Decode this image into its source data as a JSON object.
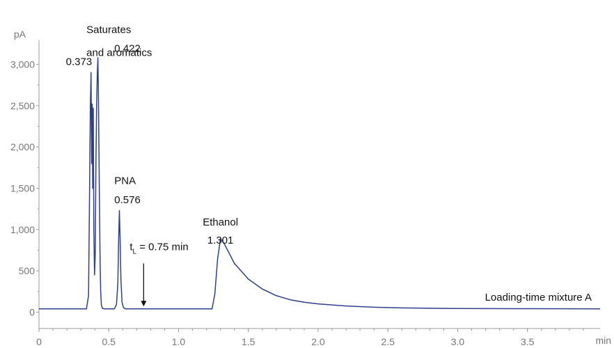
{
  "chart_data": {
    "type": "line",
    "title": "",
    "xlabel": "min",
    "ylabel": "pA",
    "xlim": [
      0,
      4.02
    ],
    "ylim": [
      -80,
      3290
    ],
    "x_ticks": [
      0,
      0.5,
      1.0,
      1.5,
      2.0,
      2.5,
      3.0,
      3.5
    ],
    "x_tick_labels": [
      "0",
      "0.5",
      "1.0",
      "1.5",
      "2.0",
      "2.5",
      "3.0",
      "3.5"
    ],
    "y_ticks": [
      0,
      500,
      1000,
      1500,
      2000,
      2500,
      3000
    ],
    "y_tick_labels": [
      "0",
      "500",
      "1,000",
      "1,500",
      "2,000",
      "2,500",
      "3,000"
    ],
    "grid": false,
    "series": [
      {
        "color": "#2e3f8f",
        "x": [
          0,
          0.2,
          0.34,
          0.355,
          0.362,
          0.368,
          0.373,
          0.377,
          0.381,
          0.385,
          0.389,
          0.393,
          0.398,
          0.403,
          0.408,
          0.413,
          0.418,
          0.422,
          0.426,
          0.43,
          0.434,
          0.438,
          0.442,
          0.447,
          0.455,
          0.47,
          0.54,
          0.555,
          0.565,
          0.571,
          0.576,
          0.581,
          0.587,
          0.595,
          0.605,
          0.62,
          0.9,
          1.1,
          1.24,
          1.26,
          1.28,
          1.301,
          1.33,
          1.4,
          1.5,
          1.6,
          1.7,
          1.8,
          1.9,
          2.0,
          2.2,
          2.4,
          2.6,
          2.8,
          3.0,
          3.4,
          3.8,
          4.02
        ],
        "y": [
          40,
          40,
          40,
          200,
          1400,
          2500,
          2900,
          1800,
          2520,
          1500,
          2470,
          1000,
          450,
          700,
          1800,
          2500,
          2900,
          3080,
          2600,
          1900,
          1200,
          600,
          250,
          90,
          45,
          40,
          40,
          90,
          350,
          900,
          1230,
          900,
          400,
          120,
          55,
          40,
          40,
          40,
          40,
          220,
          650,
          890,
          820,
          590,
          400,
          280,
          200,
          150,
          120,
          100,
          75,
          60,
          52,
          47,
          44,
          42,
          41,
          40
        ]
      }
    ],
    "annotations": [
      {
        "text": "Saturates",
        "x": 0.34,
        "y": 3380
      },
      {
        "text": "and aromatics",
        "x": 0.34,
        "y": 3100
      },
      {
        "text": "0.422",
        "x": 0.54,
        "y": 3150
      },
      {
        "text": "0.373",
        "x": 0.38,
        "y": 2990
      },
      {
        "text": "PNA",
        "x": 0.54,
        "y": 1550
      },
      {
        "text": "0.576",
        "x": 0.54,
        "y": 1320
      },
      {
        "text": "Ethanol",
        "x": 1.3,
        "y": 1050
      },
      {
        "text": "1.301",
        "x": 1.3,
        "y": 830
      },
      {
        "text": "Loading-time mixture A",
        "x": 3.96,
        "y": 140
      }
    ],
    "tL_label": {
      "main": "t",
      "sub": "L",
      "rest": " = 0.75 min"
    },
    "arrow": {
      "x": 0.75,
      "y_start": 590,
      "y_end": 70
    }
  }
}
